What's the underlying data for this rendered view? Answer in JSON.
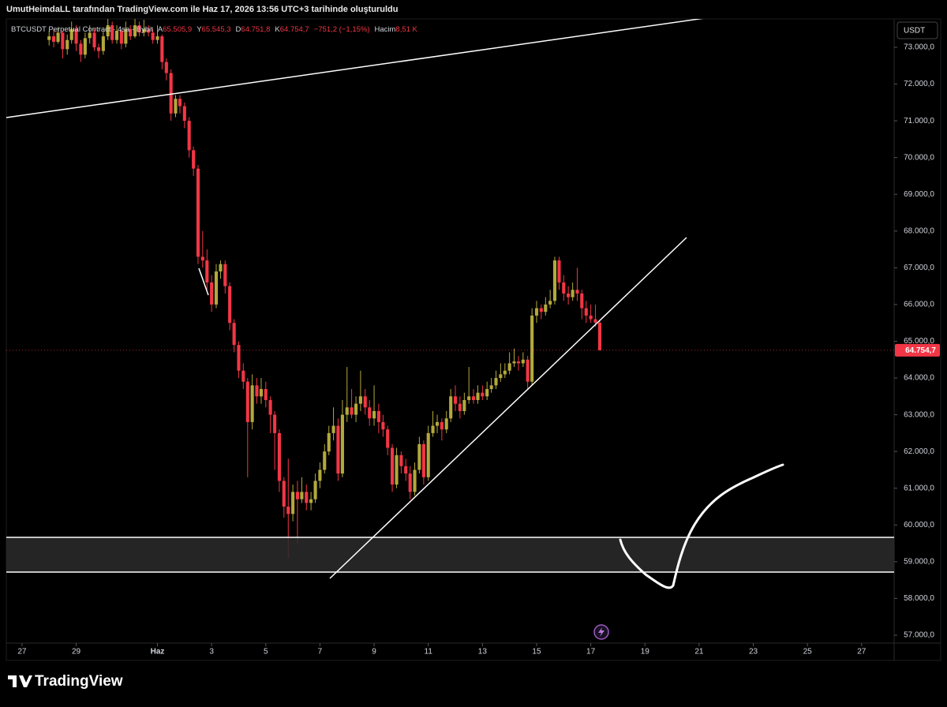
{
  "header": {
    "caption": "UmutHeimdaLL tarafından TradingView.com ile Haz 17, 2026 13:56 UTC+3 tarihinde oluşturuldu",
    "logo": "TradingView"
  },
  "chart_data": {
    "type": "candlestick",
    "symbol": "BTCUSDT Perpetual Contract · 4sa · Bybit",
    "legend": {
      "open_key": "A",
      "open": "65.505,9",
      "high_key": "Y",
      "high": "65.545,3",
      "low_key": "D",
      "low": "64.751,8",
      "close_key": "K",
      "close": "64.754,7",
      "change": "−751,2 (−1,15%)",
      "volume_key": "Hacim",
      "volume": "8,51 K"
    },
    "currency": "USDT",
    "last_price": {
      "value": 64754.7,
      "label": "64.754,7"
    },
    "up_color": "#b2a93b",
    "down_color": "#f23645",
    "xlim": [
      -0.58,
      32.2
    ],
    "xticks": [
      {
        "value": 0,
        "label": "27"
      },
      {
        "value": 2,
        "label": "29"
      },
      {
        "value": 5,
        "label": "Haz"
      },
      {
        "value": 7,
        "label": "3"
      },
      {
        "value": 9,
        "label": "5"
      },
      {
        "value": 11,
        "label": "7"
      },
      {
        "value": 13,
        "label": "9"
      },
      {
        "value": 15,
        "label": "11"
      },
      {
        "value": 17,
        "label": "13"
      },
      {
        "value": 19,
        "label": "15"
      },
      {
        "value": 21,
        "label": "17"
      },
      {
        "value": 23,
        "label": "19"
      },
      {
        "value": 25,
        "label": "21"
      },
      {
        "value": 27,
        "label": "23"
      },
      {
        "value": 29,
        "label": "25"
      },
      {
        "value": 31,
        "label": "27"
      }
    ],
    "ylim": [
      56785,
      73773
    ],
    "yticks": [
      {
        "value": 57000,
        "label": "57.000,0"
      },
      {
        "value": 58000,
        "label": "58.000,0"
      },
      {
        "value": 59000,
        "label": "59.000,0"
      },
      {
        "value": 60000,
        "label": "60.000,0"
      },
      {
        "value": 61000,
        "label": "61.000,0"
      },
      {
        "value": 62000,
        "label": "62.000,0"
      },
      {
        "value": 63000,
        "label": "63.000,0"
      },
      {
        "value": 64000,
        "label": "64.000,0"
      },
      {
        "value": 65000,
        "label": "65.000,0"
      },
      {
        "value": 66000,
        "label": "66.000,0"
      },
      {
        "value": 67000,
        "label": "67.000,0"
      },
      {
        "value": 68000,
        "label": "68.000,0"
      },
      {
        "value": 69000,
        "label": "69.000,0"
      },
      {
        "value": 70000,
        "label": "70.000,0"
      },
      {
        "value": 71000,
        "label": "71.000,0"
      },
      {
        "value": 72000,
        "label": "72.000,0"
      },
      {
        "value": 73000,
        "label": "73.000,0"
      }
    ],
    "x": [
      1,
      1.17,
      1.33,
      1.5,
      1.67,
      1.83,
      2,
      2.17,
      2.33,
      2.5,
      2.67,
      2.83,
      3,
      3.17,
      3.33,
      3.5,
      3.67,
      3.83,
      4,
      4.17,
      4.33,
      4.5,
      4.67,
      4.83,
      5,
      5.17,
      5.33,
      5.5,
      5.67,
      5.83,
      6,
      6.17,
      6.33,
      6.5,
      6.67,
      6.83,
      7,
      7.17,
      7.33,
      7.5,
      7.67,
      7.83,
      8,
      8.17,
      8.33,
      8.5,
      8.67,
      8.83,
      9,
      9.17,
      9.33,
      9.5,
      9.67,
      9.83,
      10,
      10.17,
      10.33,
      10.5,
      10.67,
      10.83,
      11,
      11.17,
      11.33,
      11.5,
      11.67,
      11.83,
      12,
      12.17,
      12.33,
      12.5,
      12.67,
      12.83,
      13,
      13.17,
      13.33,
      13.5,
      13.67,
      13.83,
      14,
      14.17,
      14.33,
      14.5,
      14.67,
      14.83,
      15,
      15.17,
      15.33,
      15.5,
      15.67,
      15.83,
      16,
      16.17,
      16.33,
      16.5,
      16.67,
      16.83,
      17,
      17.17,
      17.33,
      17.5,
      17.67,
      17.83,
      18,
      18.17,
      18.33,
      18.5,
      18.67,
      18.83,
      19,
      19.17,
      19.33,
      19.5,
      19.67,
      19.83,
      20,
      20.17,
      20.33,
      20.5,
      20.67,
      20.83,
      21,
      21.17,
      21.33
    ],
    "ohlc": [
      [
        73200,
        73450,
        73050,
        73300
      ],
      [
        73300,
        73500,
        73000,
        73150
      ],
      [
        73150,
        73550,
        73100,
        73400
      ],
      [
        73400,
        73450,
        72700,
        72950
      ],
      [
        72950,
        73350,
        72800,
        73200
      ],
      [
        73200,
        73700,
        73100,
        73500
      ],
      [
        73500,
        73600,
        72900,
        73100
      ],
      [
        73100,
        73200,
        72600,
        72800
      ],
      [
        72800,
        73400,
        72700,
        73250
      ],
      [
        73250,
        73600,
        73100,
        73400
      ],
      [
        73400,
        73500,
        72900,
        73000
      ],
      [
        73000,
        73100,
        72700,
        72900
      ],
      [
        72900,
        73450,
        72800,
        73300
      ],
      [
        73300,
        73800,
        73200,
        73600
      ],
      [
        73600,
        73700,
        73100,
        73200
      ],
      [
        73200,
        73600,
        73100,
        73450
      ],
      [
        73450,
        73500,
        72950,
        73100
      ],
      [
        73100,
        73700,
        73000,
        73500
      ],
      [
        73500,
        73600,
        73200,
        73300
      ],
      [
        73300,
        73800,
        73250,
        73600
      ],
      [
        73600,
        73700,
        73300,
        73400
      ],
      [
        73400,
        73750,
        73300,
        73500
      ],
      [
        73500,
        73600,
        73300,
        73400
      ],
      [
        73400,
        73500,
        73100,
        73200
      ],
      [
        73200,
        73600,
        73100,
        73300
      ],
      [
        73300,
        73350,
        72400,
        72600
      ],
      [
        72600,
        72700,
        72100,
        72300
      ],
      [
        72300,
        72400,
        71000,
        71200
      ],
      [
        71200,
        71700,
        71100,
        71600
      ],
      [
        71600,
        71700,
        71200,
        71400
      ],
      [
        71400,
        71500,
        70800,
        71000
      ],
      [
        71000,
        71100,
        70000,
        70200
      ],
      [
        70200,
        70300,
        69500,
        69700
      ],
      [
        69700,
        69800,
        67100,
        67300
      ],
      [
        67300,
        68000,
        67000,
        67200
      ],
      [
        67200,
        67500,
        66400,
        66600
      ],
      [
        66600,
        66800,
        65800,
        66000
      ],
      [
        66000,
        67100,
        65900,
        66900
      ],
      [
        66900,
        67200,
        66700,
        67100
      ],
      [
        67100,
        67200,
        66300,
        66500
      ],
      [
        66500,
        66600,
        65300,
        65500
      ],
      [
        65500,
        65600,
        64700,
        64900
      ],
      [
        64900,
        65000,
        64000,
        64200
      ],
      [
        64200,
        64400,
        63700,
        63900
      ],
      [
        63900,
        64000,
        61300,
        62800
      ],
      [
        62800,
        64100,
        62600,
        63800
      ],
      [
        63800,
        64000,
        63300,
        63500
      ],
      [
        63500,
        64000,
        63300,
        63700
      ],
      [
        63700,
        63900,
        63200,
        63400
      ],
      [
        63400,
        63500,
        62500,
        63000
      ],
      [
        63000,
        63100,
        61500,
        62500
      ],
      [
        62500,
        62600,
        60900,
        61200
      ],
      [
        61200,
        61300,
        60200,
        60500
      ],
      [
        60500,
        61800,
        59100,
        60300
      ],
      [
        60300,
        61100,
        60100,
        60900
      ],
      [
        60900,
        61200,
        59500,
        60700
      ],
      [
        60700,
        61300,
        60600,
        60900
      ],
      [
        60900,
        61100,
        60400,
        60600
      ],
      [
        60600,
        60900,
        60400,
        60700
      ],
      [
        60700,
        61400,
        60600,
        61200
      ],
      [
        61200,
        61700,
        61000,
        61500
      ],
      [
        61500,
        62200,
        61400,
        62000
      ],
      [
        62000,
        62700,
        61900,
        62500
      ],
      [
        62500,
        63200,
        62300,
        62700
      ],
      [
        62700,
        62900,
        61200,
        61400
      ],
      [
        61400,
        63400,
        61300,
        63000
      ],
      [
        63000,
        64300,
        62800,
        63200
      ],
      [
        63200,
        63700,
        62900,
        63000
      ],
      [
        63000,
        63500,
        62800,
        63300
      ],
      [
        63300,
        64200,
        63100,
        63500
      ],
      [
        63500,
        63700,
        63000,
        63200
      ],
      [
        63200,
        63400,
        62700,
        62900
      ],
      [
        62900,
        63800,
        62700,
        63100
      ],
      [
        63100,
        63300,
        62500,
        62800
      ],
      [
        62800,
        63000,
        62400,
        62600
      ],
      [
        62600,
        62700,
        61900,
        62100
      ],
      [
        62100,
        62200,
        60900,
        61100
      ],
      [
        61100,
        62100,
        61000,
        61900
      ],
      [
        61900,
        62000,
        61400,
        61600
      ],
      [
        61600,
        61800,
        61200,
        61400
      ],
      [
        61400,
        61600,
        60700,
        60900
      ],
      [
        60900,
        61700,
        60800,
        61500
      ],
      [
        61500,
        62400,
        61400,
        62200
      ],
      [
        62200,
        62300,
        61100,
        61300
      ],
      [
        61300,
        62700,
        61200,
        62500
      ],
      [
        62500,
        63100,
        62400,
        62700
      ],
      [
        62700,
        63000,
        62500,
        62800
      ],
      [
        62800,
        62900,
        62300,
        62600
      ],
      [
        62600,
        63100,
        62500,
        62900
      ],
      [
        62900,
        63700,
        62800,
        63500
      ],
      [
        63500,
        63800,
        63100,
        63300
      ],
      [
        63300,
        63500,
        62900,
        63100
      ],
      [
        63100,
        63600,
        63000,
        63400
      ],
      [
        63400,
        64300,
        63300,
        63500
      ],
      [
        63500,
        63700,
        63300,
        63400
      ],
      [
        63400,
        63800,
        63300,
        63600
      ],
      [
        63600,
        63800,
        63400,
        63500
      ],
      [
        63500,
        63900,
        63400,
        63700
      ],
      [
        63700,
        64000,
        63600,
        63800
      ],
      [
        63800,
        64200,
        63700,
        64000
      ],
      [
        64000,
        64400,
        63900,
        64100
      ],
      [
        64100,
        64400,
        64000,
        64200
      ],
      [
        64200,
        64700,
        64100,
        64400
      ],
      [
        64400,
        64800,
        64300,
        64450
      ],
      [
        64450,
        64600,
        64200,
        64400
      ],
      [
        64400,
        64700,
        64300,
        64500
      ],
      [
        64500,
        64600,
        63700,
        63900
      ],
      [
        63900,
        65900,
        63800,
        65700
      ],
      [
        65700,
        66100,
        65500,
        65900
      ],
      [
        65900,
        66000,
        65600,
        65800
      ],
      [
        65800,
        66200,
        65700,
        66000
      ],
      [
        66000,
        66400,
        65900,
        66100
      ],
      [
        66100,
        67300,
        66000,
        67200
      ],
      [
        67200,
        67300,
        66400,
        66600
      ],
      [
        66600,
        66800,
        66100,
        66300
      ],
      [
        66300,
        66500,
        66000,
        66200
      ],
      [
        66200,
        66600,
        66100,
        66400
      ],
      [
        66400,
        67000,
        66100,
        66300
      ],
      [
        66300,
        66400,
        65600,
        65900
      ],
      [
        65900,
        66100,
        65500,
        65700
      ],
      [
        65700,
        66000,
        65500,
        65600
      ],
      [
        65600,
        66000,
        65400,
        65505.9
      ],
      [
        65505.9,
        65545.3,
        64751.8,
        64754.7
      ]
    ]
  }
}
